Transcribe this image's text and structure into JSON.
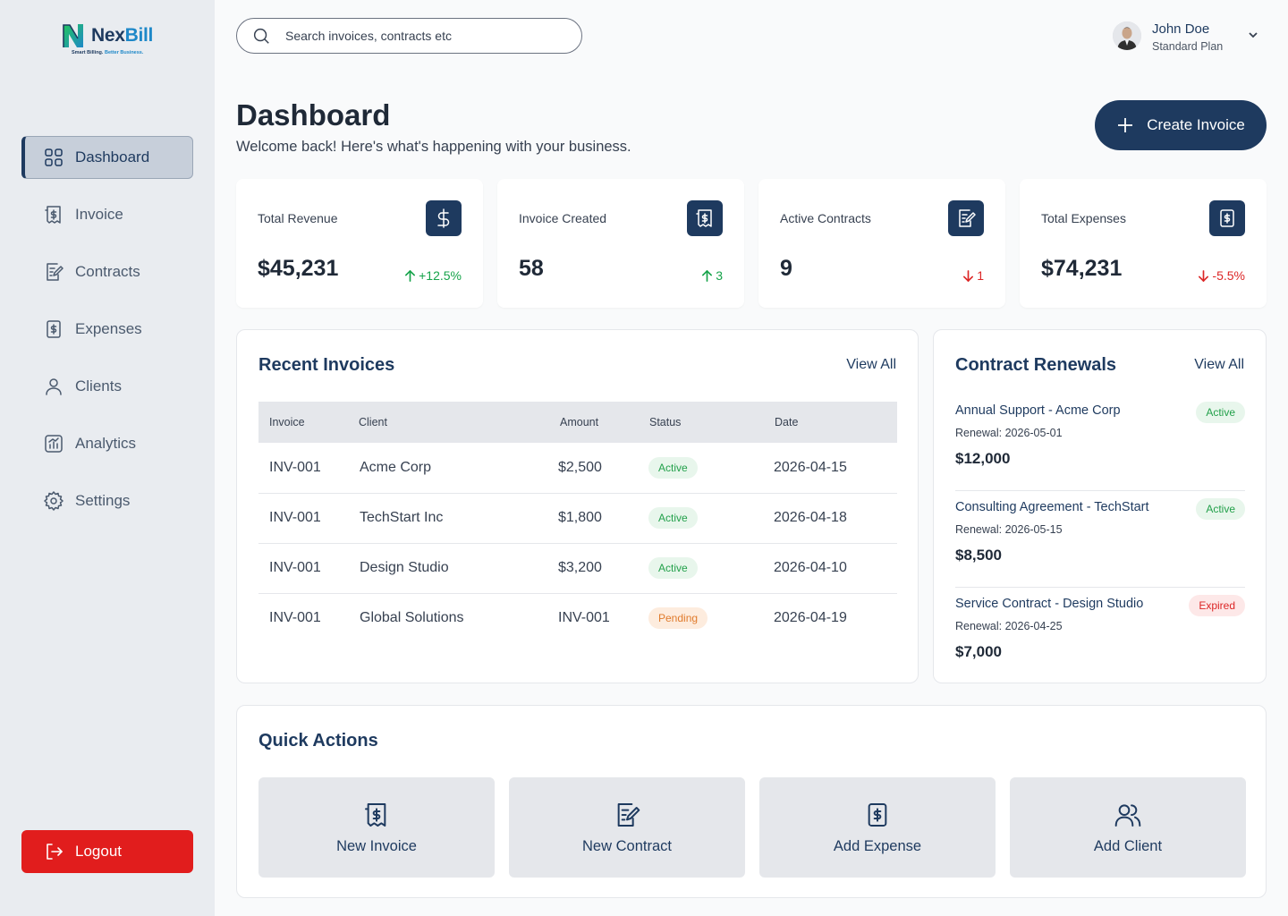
{
  "brand": {
    "name_part1": "Nex",
    "name_part2": "Bill",
    "tagline_part1": "Smart Billing. ",
    "tagline_part2": "Better Business."
  },
  "sidebar": {
    "items": [
      {
        "label": "Dashboard",
        "icon": "grid-icon",
        "active": true
      },
      {
        "label": "Invoice",
        "icon": "invoice-icon"
      },
      {
        "label": "Contracts",
        "icon": "contract-icon"
      },
      {
        "label": "Expenses",
        "icon": "receipt-icon"
      },
      {
        "label": "Clients",
        "icon": "user-icon"
      },
      {
        "label": "Analytics",
        "icon": "chart-icon"
      },
      {
        "label": "Settings",
        "icon": "gear-icon"
      }
    ],
    "logout_label": "Logout"
  },
  "header": {
    "search_placeholder": "Search invoices, contracts etc",
    "user_name": "John Doe",
    "user_plan": "Standard Plan"
  },
  "page": {
    "title": "Dashboard",
    "subtitle": "Welcome back! Here's what's happening with your business.",
    "create_label": "Create Invoice"
  },
  "stats": [
    {
      "label": "Total Revenue",
      "value": "$45,231",
      "change": "+12.5%",
      "direction": "up",
      "icon": "dollar-icon"
    },
    {
      "label": "Invoice Created",
      "value": "58",
      "change": "3",
      "direction": "up",
      "icon": "invoice-icon"
    },
    {
      "label": "Active Contracts",
      "value": "9",
      "change": "1",
      "direction": "down",
      "icon": "contract-icon"
    },
    {
      "label": "Total Expenses",
      "value": "$74,231",
      "change": "-5.5%",
      "direction": "down",
      "icon": "receipt-icon"
    }
  ],
  "recent_invoices": {
    "title": "Recent Invoices",
    "view_all": "View All",
    "columns": [
      "Invoice",
      "Client",
      "Amount",
      "Status",
      "Date"
    ],
    "rows": [
      {
        "invoice": "INV-001",
        "client": "Acme Corp",
        "amount": "$2,500",
        "status": "Active",
        "date": "2026-04-15"
      },
      {
        "invoice": "INV-001",
        "client": "TechStart Inc",
        "amount": "$1,800",
        "status": "Active",
        "date": "2026-04-18"
      },
      {
        "invoice": "INV-001",
        "client": "Design Studio",
        "amount": "$3,200",
        "status": "Active",
        "date": "2026-04-10"
      },
      {
        "invoice": "INV-001",
        "client": "Global Solutions",
        "amount": "INV-001",
        "status": "Pending",
        "date": "2026-04-19"
      }
    ]
  },
  "contract_renewals": {
    "title": "Contract Renewals",
    "view_all": "View All",
    "items": [
      {
        "title": "Annual Support - Acme Corp",
        "renewal": "Renewal: 2026-05-01",
        "amount": "$12,000",
        "status": "Active"
      },
      {
        "title": "Consulting Agreement - TechStart",
        "renewal": "Renewal: 2026-05-15",
        "amount": "$8,500",
        "status": "Active"
      },
      {
        "title": "Service Contract - Design Studio",
        "renewal": "Renewal: 2026-04-25",
        "amount": "$7,000",
        "status": "Expired"
      }
    ]
  },
  "quick_actions": {
    "title": "Quick Actions",
    "items": [
      {
        "label": "New Invoice",
        "icon": "invoice-icon"
      },
      {
        "label": "New Contract",
        "icon": "contract-icon"
      },
      {
        "label": "Add Expense",
        "icon": "receipt-icon"
      },
      {
        "label": "Add Client",
        "icon": "users-icon"
      }
    ]
  },
  "colors": {
    "primary": "#1e3a5f",
    "accent": "#1e88c8",
    "danger": "#e11d1d",
    "success": "#16a34a"
  }
}
